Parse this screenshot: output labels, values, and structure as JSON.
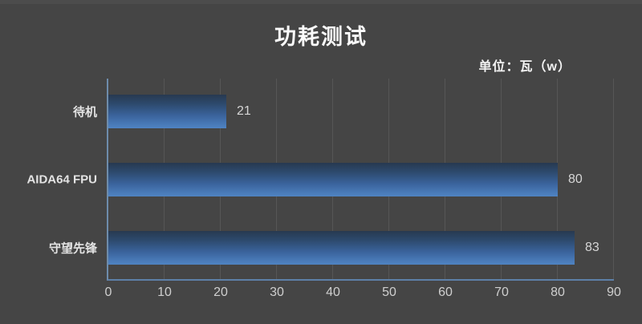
{
  "chart_data": {
    "type": "bar",
    "orientation": "horizontal",
    "title": "功耗测试",
    "unit_label": "单位：瓦（w）",
    "categories": [
      "待机",
      "AIDA64 FPU",
      "守望先锋"
    ],
    "values": [
      21,
      80,
      83
    ],
    "xlim": [
      0,
      90
    ],
    "x_ticks": [
      0,
      10,
      20,
      30,
      40,
      50,
      60,
      70,
      80,
      90
    ],
    "grid": true,
    "legend": "none",
    "colors": {
      "background": "#454545",
      "bar_gradient_top": "#273950",
      "bar_gradient_bottom": "#4f83c2",
      "axis_line": "#6e8cab",
      "gridline": "#565656",
      "title_text": "#fbfbfb",
      "value_text": "#d6d6d6"
    }
  }
}
